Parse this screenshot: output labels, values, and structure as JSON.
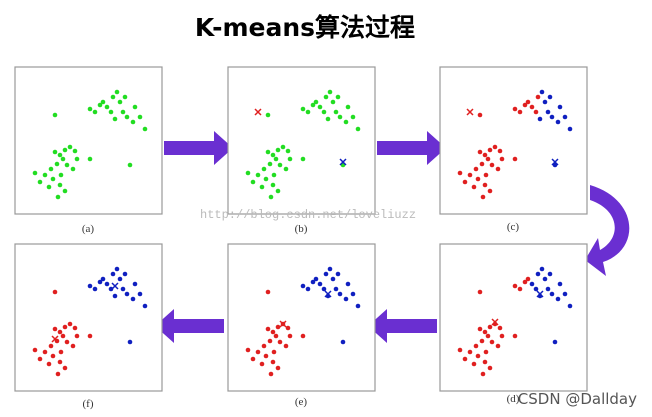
{
  "title": "K-means算法过程",
  "panels": [
    {
      "label": "(a)"
    },
    {
      "label": "(b)"
    },
    {
      "label": "(c)"
    },
    {
      "label": "(d)"
    },
    {
      "label": "(e)"
    },
    {
      "label": "(f)"
    }
  ],
  "watermark": "http://blog.csdn.net/loveliuzz",
  "credit": "CSDN @Dallday"
}
